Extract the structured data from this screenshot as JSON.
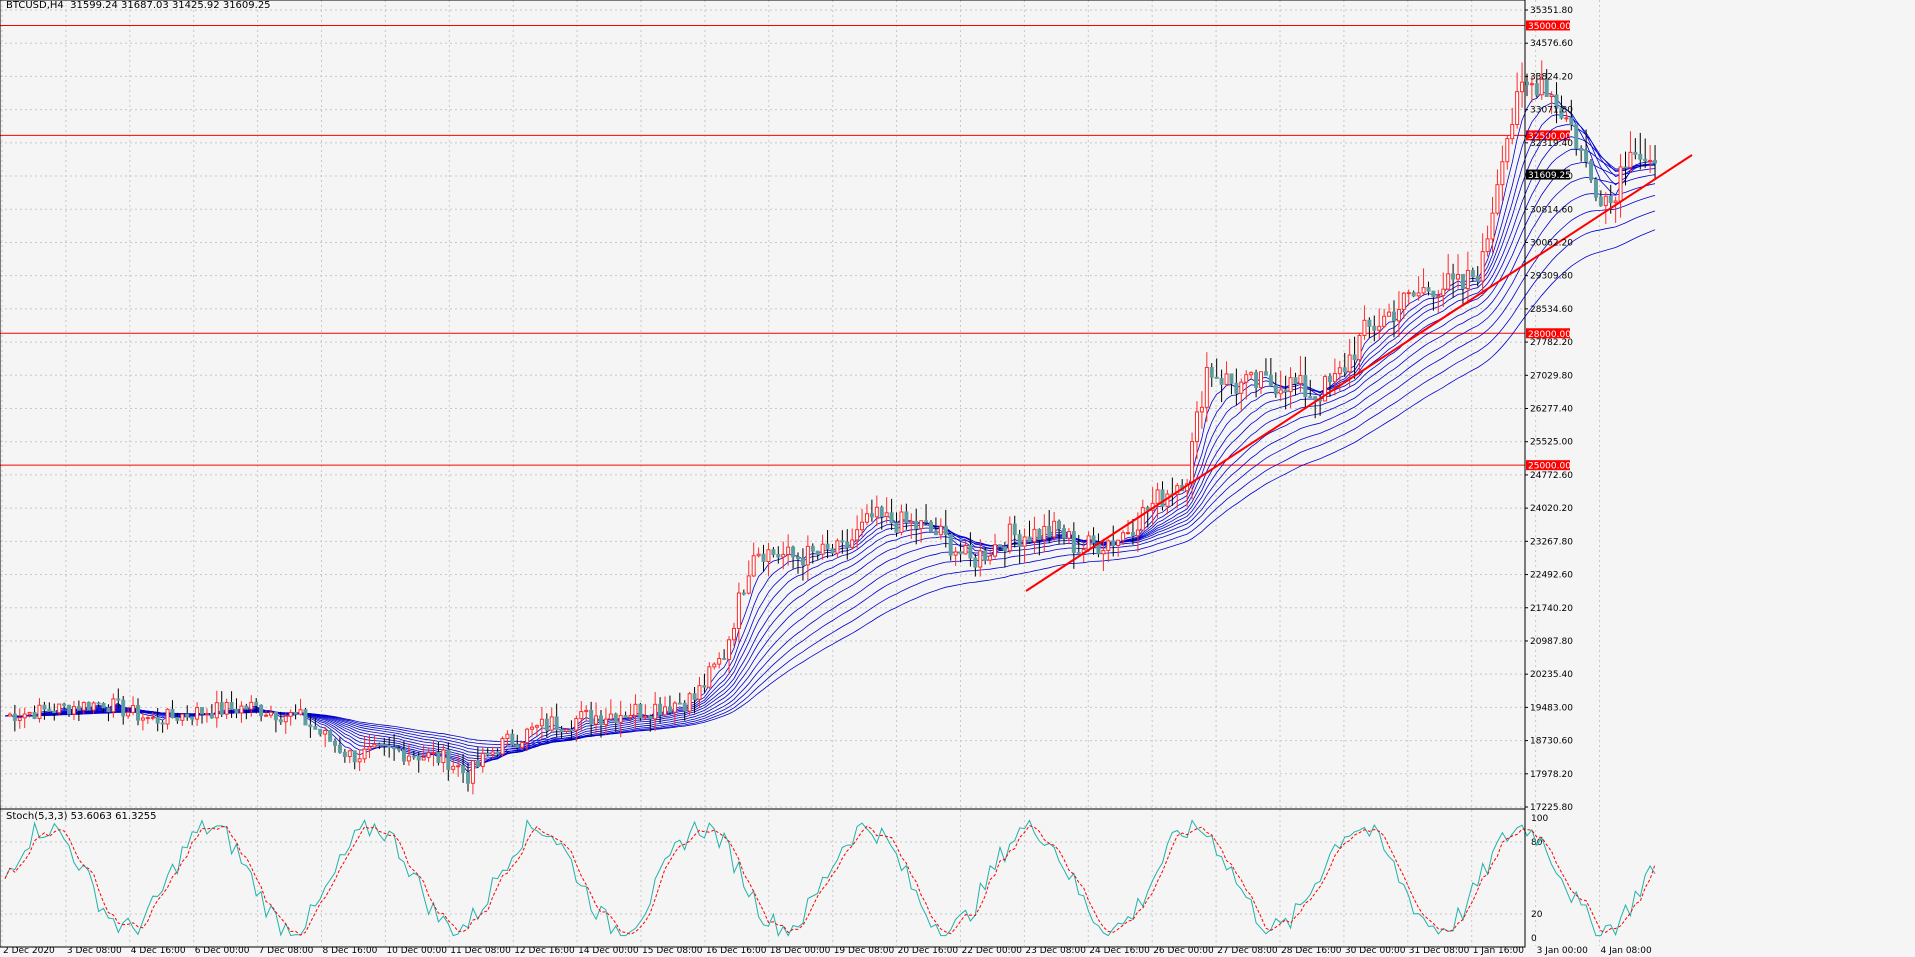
{
  "header": {
    "symbol_line": "BTCUSD,H4  31599.24 31687.03 31425.92 31609.25"
  },
  "indicator": {
    "label": "Stoch(5,3,3) 53.6063 61.3255"
  },
  "colors": {
    "background": "#f5f5f5",
    "grid": "#c8c8c8",
    "bull_candle": "#ff2a2a",
    "bear_candle": "#5f9ea0",
    "ma_ribbon": "#0000cd",
    "level_lines": "#ff0000",
    "trendline": "#ff0000",
    "stoch_main": "#20b2aa",
    "stoch_signal": "#ff0000"
  },
  "chart_data": [
    {
      "type": "candlestick",
      "title": "BTCUSD,H4",
      "price_axis_ticks": [
        "35351.80",
        "34576.60",
        "33824.20",
        "33071.80",
        "32319.40",
        "31567.00",
        "30814.60",
        "30062.20",
        "29309.80",
        "28534.60",
        "27782.20",
        "27029.80",
        "26277.40",
        "25525.00",
        "24772.60",
        "24020.20",
        "23267.80",
        "22492.60",
        "21740.20",
        "20987.80",
        "20235.40",
        "19483.00",
        "18730.60",
        "17978.20",
        "17225.80"
      ],
      "ylim": [
        17225.8,
        35351.8
      ],
      "time_axis_ticks": [
        "2 Dec 2020",
        "3 Dec 08:00",
        "4 Dec 16:00",
        "6 Dec 00:00",
        "7 Dec 08:00",
        "8 Dec 16:00",
        "10 Dec 00:00",
        "11 Dec 08:00",
        "12 Dec 16:00",
        "14 Dec 00:00",
        "15 Dec 08:00",
        "16 Dec 16:00",
        "18 Dec 00:00",
        "19 Dec 08:00",
        "20 Dec 16:00",
        "22 Dec 00:00",
        "23 Dec 08:00",
        "24 Dec 16:00",
        "26 Dec 00:00",
        "27 Dec 08:00",
        "28 Dec 16:00",
        "30 Dec 00:00",
        "31 Dec 08:00",
        "1 Jan 16:00",
        "3 Jan 00:00",
        "4 Jan 08:00"
      ],
      "horizontal_levels": [
        {
          "value": 35000,
          "label": "35000.00"
        },
        {
          "value": 32500,
          "label": "32500.00"
        },
        {
          "value": 28000,
          "label": "28000.00"
        },
        {
          "value": 25000,
          "label": "25000.00"
        }
      ],
      "current_price": {
        "value": 31609.25,
        "label": "31609.25"
      },
      "close_path_anchors": [
        [
          0,
          19300
        ],
        [
          10,
          19450
        ],
        [
          20,
          19600
        ],
        [
          30,
          19200
        ],
        [
          40,
          19400
        ],
        [
          50,
          19500
        ],
        [
          60,
          19250
        ],
        [
          70,
          18400
        ],
        [
          80,
          18500
        ],
        [
          90,
          18300
        ],
        [
          94,
          17950
        ],
        [
          100,
          18600
        ],
        [
          110,
          19100
        ],
        [
          120,
          19300
        ],
        [
          130,
          19450
        ],
        [
          140,
          19700
        ],
        [
          146,
          20700
        ],
        [
          152,
          23100
        ],
        [
          160,
          22900
        ],
        [
          170,
          23050
        ],
        [
          176,
          23800
        ],
        [
          186,
          23600
        ],
        [
          190,
          23400
        ],
        [
          196,
          22800
        ],
        [
          204,
          23400
        ],
        [
          214,
          23500
        ],
        [
          218,
          23100
        ],
        [
          226,
          23350
        ],
        [
          232,
          24000
        ],
        [
          240,
          24800
        ],
        [
          244,
          27200
        ],
        [
          250,
          26800
        ],
        [
          260,
          26900
        ],
        [
          266,
          26600
        ],
        [
          270,
          26900
        ],
        [
          276,
          28000
        ],
        [
          284,
          28700
        ],
        [
          290,
          29100
        ],
        [
          296,
          29050
        ],
        [
          300,
          29600
        ],
        [
          304,
          32200
        ],
        [
          308,
          33500
        ],
        [
          312,
          33800
        ],
        [
          318,
          32700
        ],
        [
          322,
          31500
        ],
        [
          326,
          31000
        ],
        [
          330,
          32400
        ],
        [
          334,
          31609
        ]
      ],
      "stochastic": {
        "name": "Stoch(5,3,3)",
        "main": 53.6063,
        "signal": 61.3255,
        "levels": [
          20,
          80
        ],
        "axis_ticks": [
          "100",
          "80",
          "20",
          "0"
        ]
      }
    }
  ]
}
